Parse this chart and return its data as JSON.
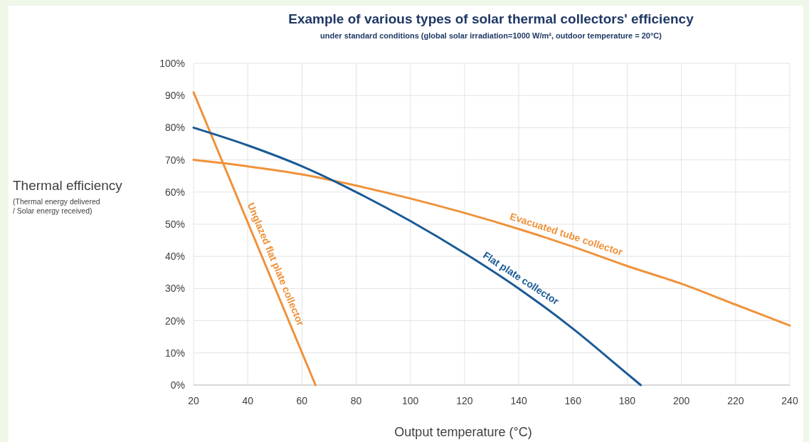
{
  "chart_data": {
    "type": "line",
    "title": "Example of various types of solar thermal collectors' efficiency",
    "subtitle": "under standard conditions (global solar irradiation=1000 W/m², outdoor temperature = 20°C)",
    "xlabel": "Output temperature (°C)",
    "ylabel": "Thermal efficiency\n(Thermal energy delivered\n/ Solar energy received)",
    "xlim": [
      20,
      240
    ],
    "xticks": [
      20,
      40,
      60,
      80,
      100,
      120,
      140,
      160,
      180,
      200,
      220,
      240
    ],
    "ylim": [
      0,
      100
    ],
    "yticks": [
      {
        "value": 0,
        "label": "0%"
      },
      {
        "value": 10,
        "label": "10%"
      },
      {
        "value": 20,
        "label": "20%"
      },
      {
        "value": 30,
        "label": "30%"
      },
      {
        "value": 40,
        "label": "40%"
      },
      {
        "value": 50,
        "label": "50%"
      },
      {
        "value": 60,
        "label": "60%"
      },
      {
        "value": 70,
        "label": "70%"
      },
      {
        "value": 80,
        "label": "80%"
      },
      {
        "value": 90,
        "label": "90%"
      },
      {
        "value": 100,
        "label": "100%"
      }
    ],
    "grid": true,
    "marker": "none",
    "line_style": "solid",
    "series": [
      {
        "name": "Unglazed flat plate collector",
        "color": "#f0923a",
        "x": [
          20,
          65
        ],
        "values": [
          91,
          0
        ]
      },
      {
        "name": "Evacuated tube collector",
        "color": "#f0923a",
        "x": [
          20,
          40,
          60,
          80,
          100,
          120,
          140,
          160,
          180,
          200,
          220,
          240
        ],
        "values": [
          70,
          68,
          65.5,
          62,
          58,
          53.5,
          48.5,
          43,
          37,
          31.5,
          25,
          18.5
        ]
      },
      {
        "name": "Flat plate collector",
        "color": "#1a5a96",
        "x": [
          20,
          40,
          60,
          80,
          100,
          120,
          140,
          160,
          180,
          185
        ],
        "values": [
          80,
          74.5,
          68,
          60,
          51,
          41,
          30,
          17.5,
          3.5,
          0
        ]
      }
    ]
  }
}
